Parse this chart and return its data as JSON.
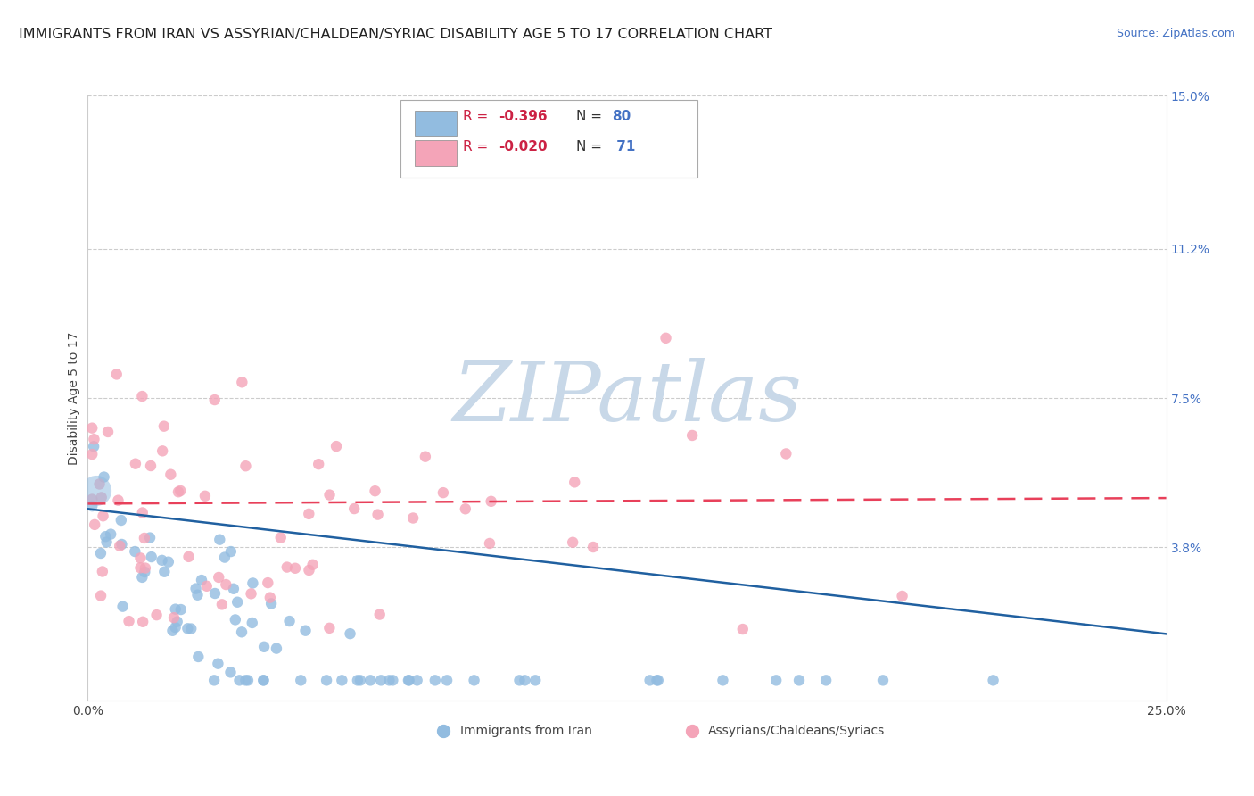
{
  "title": "IMMIGRANTS FROM IRAN VS ASSYRIAN/CHALDEAN/SYRIAC DISABILITY AGE 5 TO 17 CORRELATION CHART",
  "source": "Source: ZipAtlas.com",
  "ylabel": "Disability Age 5 to 17",
  "xlim": [
    0.0,
    0.25
  ],
  "ylim": [
    0.0,
    0.15
  ],
  "ytick_labels": [
    "3.8%",
    "7.5%",
    "11.2%",
    "15.0%"
  ],
  "ytick_positions": [
    0.038,
    0.075,
    0.112,
    0.15
  ],
  "blue_color": "#92bce0",
  "pink_color": "#f4a4b8",
  "blue_line_color": "#2060a0",
  "pink_line_color": "#e8405a",
  "blue_line_y_start": 0.0475,
  "blue_line_y_end": 0.0165,
  "pink_line_y_start": 0.0488,
  "pink_line_y_end": 0.0502,
  "watermark_color": "#c8d8e8",
  "grid_color": "#cccccc",
  "background_color": "#ffffff",
  "title_fontsize": 11.5,
  "axis_label_fontsize": 10,
  "tick_fontsize": 10,
  "source_fontsize": 9,
  "legend_fontsize": 11
}
